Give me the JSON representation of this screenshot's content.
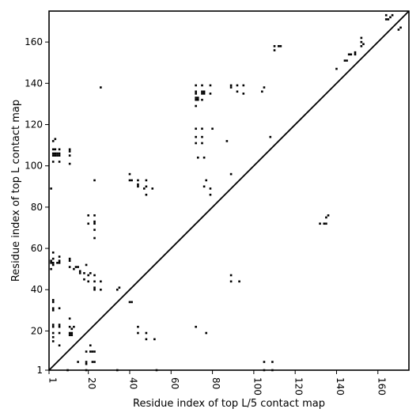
{
  "chart_data": {
    "type": "heatmap",
    "xlabel": "Residue index of top L/5 contact map",
    "ylabel": "Residue index of top L contact map",
    "xlim": [
      1,
      175
    ],
    "ylim": [
      1,
      175
    ],
    "xticks": [
      1,
      20,
      40,
      60,
      80,
      100,
      120,
      140,
      160
    ],
    "yticks": [
      1,
      20,
      40,
      60,
      80,
      100,
      120,
      140,
      160
    ],
    "diagonal": true,
    "grid": false,
    "mark_color": "#000000",
    "upper_left_contacts": [
      [
        2,
        53
      ],
      [
        2,
        54
      ],
      [
        3,
        52
      ],
      [
        3,
        53
      ],
      [
        3,
        55
      ],
      [
        3,
        58
      ],
      [
        2,
        50
      ],
      [
        2,
        89
      ],
      [
        3,
        102
      ],
      [
        3,
        105
      ],
      [
        3,
        106
      ],
      [
        3,
        108
      ],
      [
        3,
        112
      ],
      [
        4,
        105
      ],
      [
        4,
        106
      ],
      [
        4,
        108
      ],
      [
        4,
        113
      ],
      [
        5,
        105
      ],
      [
        5,
        106
      ],
      [
        6,
        102
      ],
      [
        6,
        105
      ],
      [
        6,
        106
      ],
      [
        6,
        108
      ],
      [
        5,
        53
      ],
      [
        6,
        53
      ],
      [
        6,
        54
      ],
      [
        6,
        56
      ],
      [
        11,
        101
      ],
      [
        11,
        105
      ],
      [
        11,
        107
      ],
      [
        11,
        108
      ],
      [
        11,
        51
      ],
      [
        11,
        54
      ],
      [
        11,
        55
      ],
      [
        13,
        50
      ],
      [
        14,
        51
      ],
      [
        15,
        51
      ],
      [
        16,
        48
      ],
      [
        16,
        49
      ],
      [
        18,
        45
      ],
      [
        18,
        48
      ],
      [
        19,
        52
      ],
      [
        20,
        44
      ],
      [
        20,
        47
      ],
      [
        21,
        48
      ],
      [
        23,
        44
      ],
      [
        23,
        47
      ],
      [
        23,
        93
      ],
      [
        23,
        65
      ],
      [
        23,
        69
      ],
      [
        23,
        72
      ],
      [
        23,
        73
      ],
      [
        23,
        76
      ],
      [
        20,
        72
      ],
      [
        20,
        76
      ],
      [
        23,
        40
      ],
      [
        23,
        41
      ],
      [
        26,
        40
      ],
      [
        26,
        44
      ],
      [
        26,
        138
      ],
      [
        34,
        40
      ],
      [
        35,
        41
      ],
      [
        40,
        96
      ],
      [
        40,
        93
      ],
      [
        41,
        93
      ],
      [
        44,
        90
      ],
      [
        44,
        91
      ],
      [
        44,
        93
      ],
      [
        47,
        89
      ],
      [
        48,
        86
      ],
      [
        48,
        90
      ],
      [
        48,
        93
      ],
      [
        51,
        89
      ],
      [
        72,
        111
      ],
      [
        72,
        114
      ],
      [
        72,
        118
      ],
      [
        75,
        111
      ],
      [
        75,
        114
      ],
      [
        75,
        118
      ],
      [
        73,
        104
      ],
      [
        76,
        104
      ],
      [
        76,
        90
      ],
      [
        77,
        93
      ],
      [
        79,
        86
      ],
      [
        79,
        89
      ],
      [
        80,
        118
      ],
      [
        72,
        129
      ],
      [
        72,
        132
      ],
      [
        72,
        133
      ],
      [
        72,
        135
      ],
      [
        72,
        136
      ],
      [
        72,
        139
      ],
      [
        73,
        132
      ],
      [
        73,
        133
      ],
      [
        75,
        132
      ],
      [
        75,
        135
      ],
      [
        75,
        136
      ],
      [
        75,
        139
      ],
      [
        76,
        135
      ],
      [
        76,
        136
      ],
      [
        79,
        135
      ],
      [
        79,
        139
      ],
      [
        87,
        112
      ],
      [
        89,
        96
      ],
      [
        89,
        138
      ],
      [
        89,
        139
      ],
      [
        92,
        136
      ],
      [
        92,
        139
      ],
      [
        95,
        135
      ],
      [
        95,
        139
      ],
      [
        104,
        136
      ],
      [
        105,
        138
      ],
      [
        108,
        114
      ],
      [
        110,
        156
      ],
      [
        110,
        158
      ],
      [
        112,
        158
      ],
      [
        113,
        158
      ],
      [
        132,
        72
      ],
      [
        134,
        72
      ],
      [
        135,
        72
      ],
      [
        135,
        75
      ],
      [
        136,
        76
      ],
      [
        140,
        147
      ],
      [
        144,
        151
      ],
      [
        145,
        151
      ],
      [
        146,
        154
      ],
      [
        147,
        154
      ],
      [
        149,
        154
      ],
      [
        149,
        155
      ],
      [
        152,
        158
      ],
      [
        152,
        160
      ],
      [
        153,
        159
      ],
      [
        152,
        162
      ],
      [
        164,
        171
      ],
      [
        164,
        173
      ],
      [
        165,
        171
      ],
      [
        166,
        172
      ],
      [
        167,
        173
      ],
      [
        170,
        166
      ],
      [
        171,
        167
      ]
    ],
    "lower_right_contacts": [
      [
        10,
        1
      ],
      [
        11,
        22
      ],
      [
        11,
        26
      ],
      [
        12,
        21
      ],
      [
        13,
        22
      ],
      [
        3,
        15
      ],
      [
        3,
        17
      ],
      [
        3,
        19
      ],
      [
        3,
        22
      ],
      [
        3,
        23
      ],
      [
        3,
        30
      ],
      [
        3,
        31
      ],
      [
        3,
        34
      ],
      [
        3,
        35
      ],
      [
        6,
        13
      ],
      [
        6,
        19
      ],
      [
        6,
        22
      ],
      [
        6,
        23
      ],
      [
        6,
        31
      ],
      [
        11,
        18
      ],
      [
        11,
        19
      ],
      [
        12,
        18
      ],
      [
        12,
        19
      ],
      [
        15,
        5
      ],
      [
        19,
        1
      ],
      [
        19,
        4
      ],
      [
        19,
        5
      ],
      [
        19,
        10
      ],
      [
        21,
        10
      ],
      [
        21,
        13
      ],
      [
        22,
        5
      ],
      [
        22,
        10
      ],
      [
        23,
        5
      ],
      [
        23,
        10
      ],
      [
        34,
        1
      ],
      [
        40,
        34
      ],
      [
        41,
        34
      ],
      [
        44,
        19
      ],
      [
        44,
        22
      ],
      [
        48,
        16
      ],
      [
        48,
        19
      ],
      [
        52,
        16
      ],
      [
        53,
        1
      ],
      [
        72,
        22
      ],
      [
        77,
        19
      ],
      [
        89,
        44
      ],
      [
        89,
        47
      ],
      [
        93,
        44
      ],
      [
        105,
        1
      ],
      [
        105,
        5
      ],
      [
        109,
        1
      ],
      [
        109,
        5
      ]
    ]
  }
}
